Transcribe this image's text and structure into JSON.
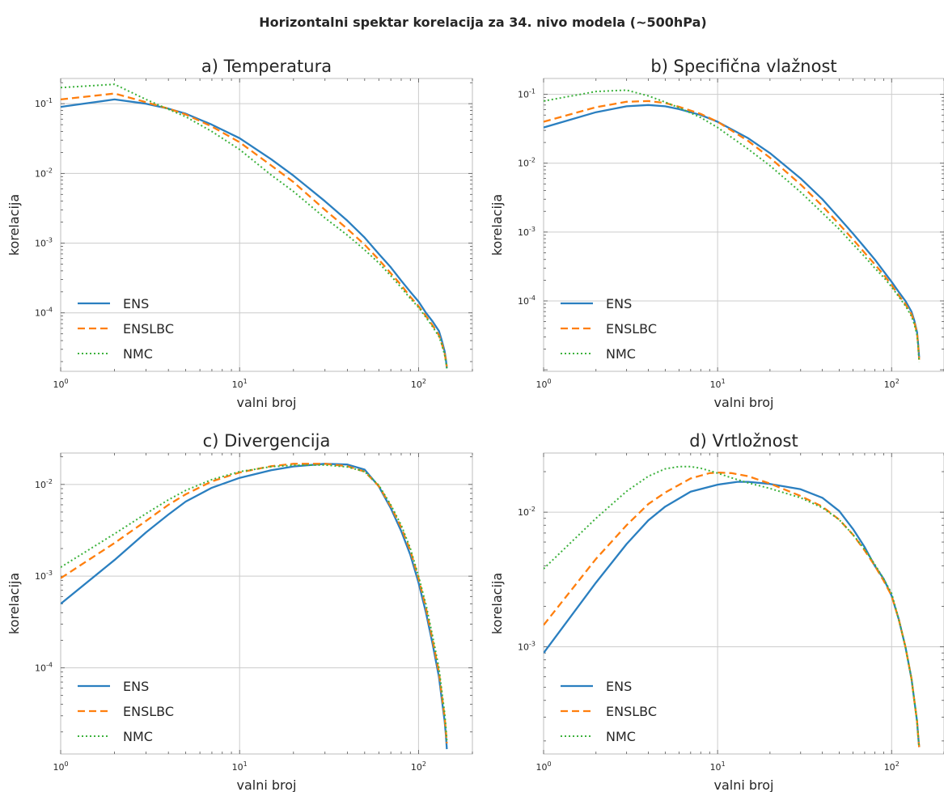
{
  "suptitle": "Horizontalni spektar korelacija za 34. nivo modela (~500hPa)",
  "colors": {
    "ENS": "#2a7fc0",
    "ENSLBC": "#ff7f0e",
    "NMC": "#3cb23c"
  },
  "legend": {
    "entries": [
      "ENS",
      "ENSLBC",
      "NMC"
    ],
    "placement": "lower-left"
  },
  "chart_data": [
    {
      "type": "line",
      "title": "a) Temperatura",
      "xlabel": "valni broj",
      "ylabel": "korelacija",
      "xscale": "log",
      "yscale": "log",
      "xlim": [
        1,
        200
      ],
      "ylim": [
        1.45e-05,
        0.23
      ],
      "xticks": [
        1,
        10,
        100
      ],
      "yticks": [
        0.0001,
        0.001,
        0.01,
        0.1
      ],
      "grid": true,
      "series": [
        {
          "name": "ENS",
          "style": "solid",
          "x": [
            1,
            2,
            3,
            4,
            5,
            7,
            10,
            15,
            20,
            30,
            40,
            50,
            60,
            70,
            80,
            90,
            100,
            110,
            120,
            130,
            135,
            140,
            142,
            144
          ],
          "y": [
            0.09,
            0.115,
            0.1,
            0.085,
            0.072,
            0.05,
            0.032,
            0.016,
            0.0093,
            0.004,
            0.0021,
            0.0012,
            0.0007,
            0.00045,
            0.00029,
            0.0002,
            0.000145,
            0.0001,
            7.5e-05,
            5.5e-05,
            4e-05,
            2.8e-05,
            2.2e-05,
            1.6e-05
          ]
        },
        {
          "name": "ENSLBC",
          "style": "dashed",
          "x": [
            1,
            2,
            3,
            4,
            5,
            7,
            10,
            15,
            20,
            30,
            40,
            50,
            60,
            70,
            80,
            90,
            100,
            110,
            120,
            130,
            135,
            140,
            142,
            144
          ],
          "y": [
            0.115,
            0.14,
            0.105,
            0.085,
            0.07,
            0.047,
            0.028,
            0.013,
            0.0075,
            0.003,
            0.0016,
            0.00095,
            0.00058,
            0.00037,
            0.00025,
            0.00017,
            0.000125,
            9e-05,
            6.6e-05,
            4.8e-05,
            3.6e-05,
            2.6e-05,
            2.1e-05,
            1.7e-05
          ]
        },
        {
          "name": "NMC",
          "style": "dotted",
          "x": [
            1,
            2,
            3,
            4,
            5,
            7,
            10,
            15,
            20,
            30,
            40,
            50,
            60,
            70,
            80,
            90,
            100,
            110,
            120,
            130,
            135,
            140,
            142,
            144
          ],
          "y": [
            0.17,
            0.19,
            0.115,
            0.083,
            0.065,
            0.04,
            0.022,
            0.0095,
            0.0055,
            0.0023,
            0.0013,
            0.0008,
            0.00052,
            0.00034,
            0.00023,
            0.00016,
            0.00012,
            8.6e-05,
            6.3e-05,
            4.6e-05,
            3.5e-05,
            2.5e-05,
            2e-05,
            1.6e-05
          ]
        }
      ]
    },
    {
      "type": "line",
      "title": "b) Specifična vlažnost",
      "xlabel": "valni broj",
      "ylabel": "korelacija",
      "xscale": "log",
      "yscale": "log",
      "xlim": [
        1,
        200
      ],
      "ylim": [
        9.5e-06,
        0.17
      ],
      "xticks": [
        1,
        10,
        100
      ],
      "yticks": [
        0.0001,
        0.001,
        0.01,
        0.1
      ],
      "grid": true,
      "series": [
        {
          "name": "ENS",
          "style": "solid",
          "x": [
            1,
            2,
            3,
            4,
            5,
            6,
            8,
            10,
            15,
            20,
            30,
            40,
            50,
            60,
            70,
            80,
            90,
            100,
            110,
            120,
            130,
            135,
            140,
            142,
            144
          ],
          "y": [
            0.033,
            0.055,
            0.067,
            0.07,
            0.067,
            0.061,
            0.05,
            0.04,
            0.023,
            0.014,
            0.006,
            0.003,
            0.0016,
            0.00095,
            0.0006,
            0.0004,
            0.00027,
            0.00019,
            0.000135,
            0.0001,
            7e-05,
            5.2e-05,
            3.5e-05,
            2.4e-05,
            1.5e-05
          ]
        },
        {
          "name": "ENSLBC",
          "style": "dashed",
          "x": [
            1,
            2,
            3,
            4,
            5,
            6,
            8,
            10,
            15,
            20,
            30,
            40,
            50,
            60,
            70,
            80,
            90,
            100,
            110,
            120,
            130,
            135,
            140,
            142,
            144
          ],
          "y": [
            0.04,
            0.065,
            0.078,
            0.08,
            0.075,
            0.066,
            0.052,
            0.04,
            0.021,
            0.012,
            0.0049,
            0.0024,
            0.0013,
            0.00078,
            0.0005,
            0.00034,
            0.00024,
            0.00017,
            0.00012,
            9e-05,
            6.4e-05,
            4.9e-05,
            3.4e-05,
            2.3e-05,
            1.4e-05
          ]
        },
        {
          "name": "NMC",
          "style": "dotted",
          "x": [
            1,
            2,
            3,
            4,
            5,
            6,
            8,
            10,
            15,
            20,
            30,
            40,
            50,
            60,
            70,
            80,
            90,
            100,
            110,
            120,
            130,
            135,
            140,
            142,
            144
          ],
          "y": [
            0.08,
            0.11,
            0.115,
            0.095,
            0.077,
            0.064,
            0.046,
            0.033,
            0.016,
            0.0092,
            0.0038,
            0.0019,
            0.0011,
            0.00067,
            0.00044,
            0.0003,
            0.00022,
            0.00016,
            0.000115,
            8.5e-05,
            6e-05,
            4.6e-05,
            3.2e-05,
            2.2e-05,
            1.3e-05
          ]
        }
      ]
    },
    {
      "type": "line",
      "title": "c) Divergencija",
      "xlabel": "valni broj",
      "ylabel": "korelacija",
      "xscale": "log",
      "yscale": "log",
      "xlim": [
        1,
        200
      ],
      "ylim": [
        1.15e-05,
        0.022
      ],
      "xticks": [
        1,
        10,
        100
      ],
      "yticks": [
        0.0001,
        0.001,
        0.01
      ],
      "grid": true,
      "series": [
        {
          "name": "ENS",
          "style": "solid",
          "x": [
            1,
            2,
            3,
            4,
            5,
            7,
            10,
            15,
            20,
            30,
            40,
            50,
            60,
            70,
            80,
            90,
            100,
            110,
            120,
            130,
            135,
            140,
            142,
            144
          ],
          "y": [
            0.0005,
            0.0015,
            0.003,
            0.0047,
            0.0065,
            0.0092,
            0.0118,
            0.0143,
            0.0157,
            0.0168,
            0.0165,
            0.0145,
            0.0095,
            0.0055,
            0.0031,
            0.0017,
            0.00085,
            0.0004,
            0.00018,
            8e-05,
            4.5e-05,
            2.6e-05,
            1.9e-05,
            1.3e-05
          ]
        },
        {
          "name": "ENSLBC",
          "style": "dashed",
          "x": [
            1,
            2,
            3,
            4,
            5,
            7,
            10,
            15,
            20,
            30,
            40,
            50,
            60,
            70,
            80,
            90,
            100,
            110,
            120,
            130,
            135,
            140,
            142,
            144
          ],
          "y": [
            0.00095,
            0.0023,
            0.004,
            0.006,
            0.0078,
            0.0108,
            0.0135,
            0.0158,
            0.0168,
            0.0168,
            0.0158,
            0.0138,
            0.0096,
            0.0058,
            0.0034,
            0.0019,
            0.00095,
            0.00045,
            0.0002,
            9e-05,
            5e-05,
            2.9e-05,
            2.1e-05,
            1.5e-05
          ]
        },
        {
          "name": "NMC",
          "style": "dotted",
          "x": [
            1,
            2,
            3,
            4,
            5,
            7,
            10,
            15,
            20,
            30,
            40,
            50,
            60,
            70,
            80,
            90,
            100,
            110,
            120,
            130,
            135,
            140,
            142,
            144
          ],
          "y": [
            0.00125,
            0.0029,
            0.0048,
            0.0068,
            0.0086,
            0.0113,
            0.0138,
            0.0156,
            0.0162,
            0.0163,
            0.0155,
            0.0138,
            0.0098,
            0.006,
            0.0036,
            0.002,
            0.001,
            0.00049,
            0.00022,
            0.0001,
            5.6e-05,
            3.2e-05,
            2.3e-05,
            1.6e-05
          ]
        }
      ]
    },
    {
      "type": "line",
      "title": "d) Vrtložnost",
      "xlabel": "valni broj",
      "ylabel": "korelacija",
      "xscale": "log",
      "yscale": "log",
      "xlim": [
        1,
        200
      ],
      "ylim": [
        0.00016,
        0.0275
      ],
      "xticks": [
        1,
        10,
        100
      ],
      "yticks": [
        0.001,
        0.01
      ],
      "grid": true,
      "series": [
        {
          "name": "ENS",
          "style": "solid",
          "x": [
            1,
            2,
            3,
            4,
            5,
            7,
            10,
            13,
            15,
            20,
            30,
            40,
            50,
            60,
            70,
            80,
            90,
            100,
            110,
            120,
            130,
            135,
            140,
            142,
            144
          ],
          "y": [
            0.0009,
            0.003,
            0.0058,
            0.0087,
            0.011,
            0.0142,
            0.016,
            0.0168,
            0.0168,
            0.0162,
            0.0148,
            0.0128,
            0.0102,
            0.0075,
            0.0055,
            0.004,
            0.0032,
            0.0024,
            0.0016,
            0.001,
            0.00058,
            0.0004,
            0.00028,
            0.00022,
            0.00018
          ]
        },
        {
          "name": "ENSLBC",
          "style": "dashed",
          "x": [
            1,
            2,
            3,
            4,
            5,
            7,
            9,
            10,
            12,
            15,
            20,
            30,
            40,
            50,
            60,
            70,
            80,
            90,
            100,
            110,
            120,
            130,
            135,
            140,
            142,
            144
          ],
          "y": [
            0.00145,
            0.0045,
            0.008,
            0.0115,
            0.014,
            0.0178,
            0.0195,
            0.0197,
            0.0195,
            0.0185,
            0.0163,
            0.0132,
            0.011,
            0.0088,
            0.0068,
            0.0052,
            0.004,
            0.0031,
            0.0024,
            0.0016,
            0.001,
            0.00058,
            0.0004,
            0.00028,
            0.00022,
            0.00018
          ]
        },
        {
          "name": "NMC",
          "style": "dotted",
          "x": [
            1,
            2,
            3,
            4,
            5,
            6,
            7,
            8,
            10,
            12,
            15,
            20,
            30,
            40,
            50,
            60,
            70,
            80,
            90,
            100,
            110,
            120,
            130,
            135,
            140,
            142,
            144
          ],
          "y": [
            0.0038,
            0.009,
            0.0143,
            0.0185,
            0.021,
            0.0218,
            0.0218,
            0.0212,
            0.0195,
            0.018,
            0.0165,
            0.015,
            0.0128,
            0.0108,
            0.0088,
            0.0068,
            0.0053,
            0.0041,
            0.0032,
            0.0025,
            0.0016,
            0.001,
            0.00058,
            0.0004,
            0.00028,
            0.00022,
            0.00018
          ]
        }
      ]
    }
  ]
}
